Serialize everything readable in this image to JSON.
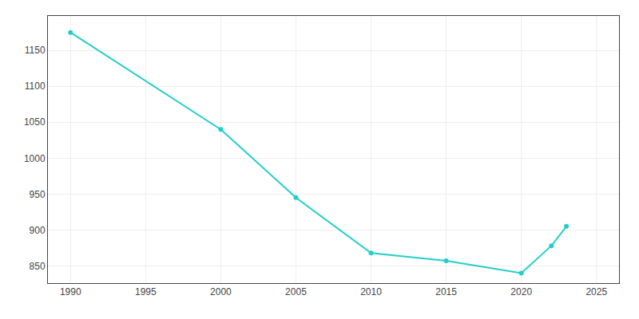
{
  "chart_data": {
    "type": "line",
    "x": [
      1990,
      2000,
      2005,
      2010,
      2015,
      2020,
      2022,
      2023
    ],
    "values": [
      1175,
      1040,
      945,
      868,
      857,
      840,
      878,
      905
    ],
    "color": "#22CEC8",
    "marker": "circle",
    "line_style": "solid",
    "xlim": [
      1988.5,
      2026.5
    ],
    "ylim": [
      826,
      1198
    ],
    "xticks": [
      1990,
      1995,
      2000,
      2005,
      2010,
      2015,
      2020,
      2025
    ],
    "yticks": [
      850,
      900,
      950,
      1000,
      1050,
      1100,
      1150
    ],
    "grid": true
  }
}
